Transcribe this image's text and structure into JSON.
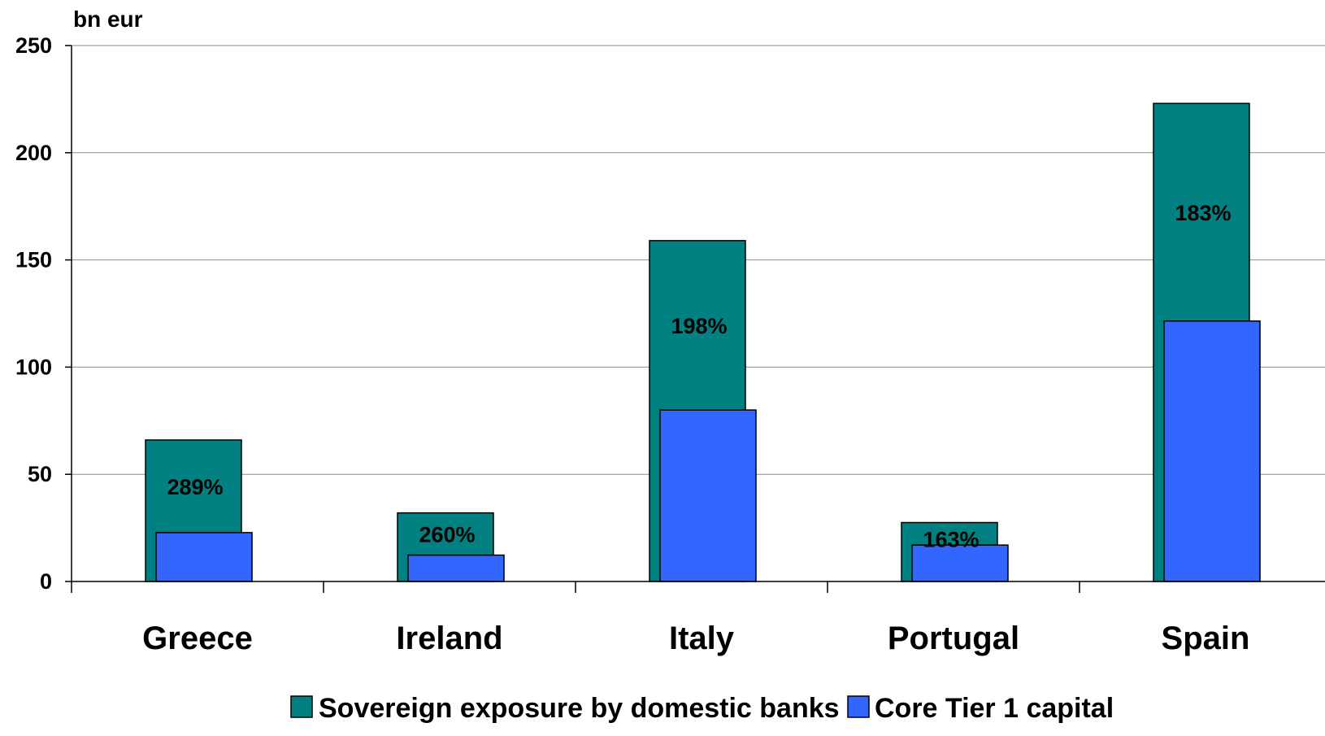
{
  "chart_data": {
    "type": "bar",
    "unit_label": "bn eur",
    "categories": [
      "Greece",
      "Ireland",
      "Italy",
      "Portugal",
      "Spain"
    ],
    "series": [
      {
        "name": "Sovereign exposure by domestic banks",
        "color": "#008080",
        "values": [
          66,
          32,
          159,
          27.5,
          223
        ]
      },
      {
        "name": "Core Tier 1 capital",
        "color": "#3366FF",
        "values": [
          22.8,
          12.3,
          80,
          17,
          121.5
        ]
      }
    ],
    "annotations": [
      "289%",
      "260%",
      "198%",
      "163%",
      "183%"
    ],
    "yticks": [
      0,
      50,
      100,
      150,
      200,
      250
    ],
    "ylim": [
      0,
      250
    ],
    "grid": true,
    "legend_position": "bottom"
  }
}
